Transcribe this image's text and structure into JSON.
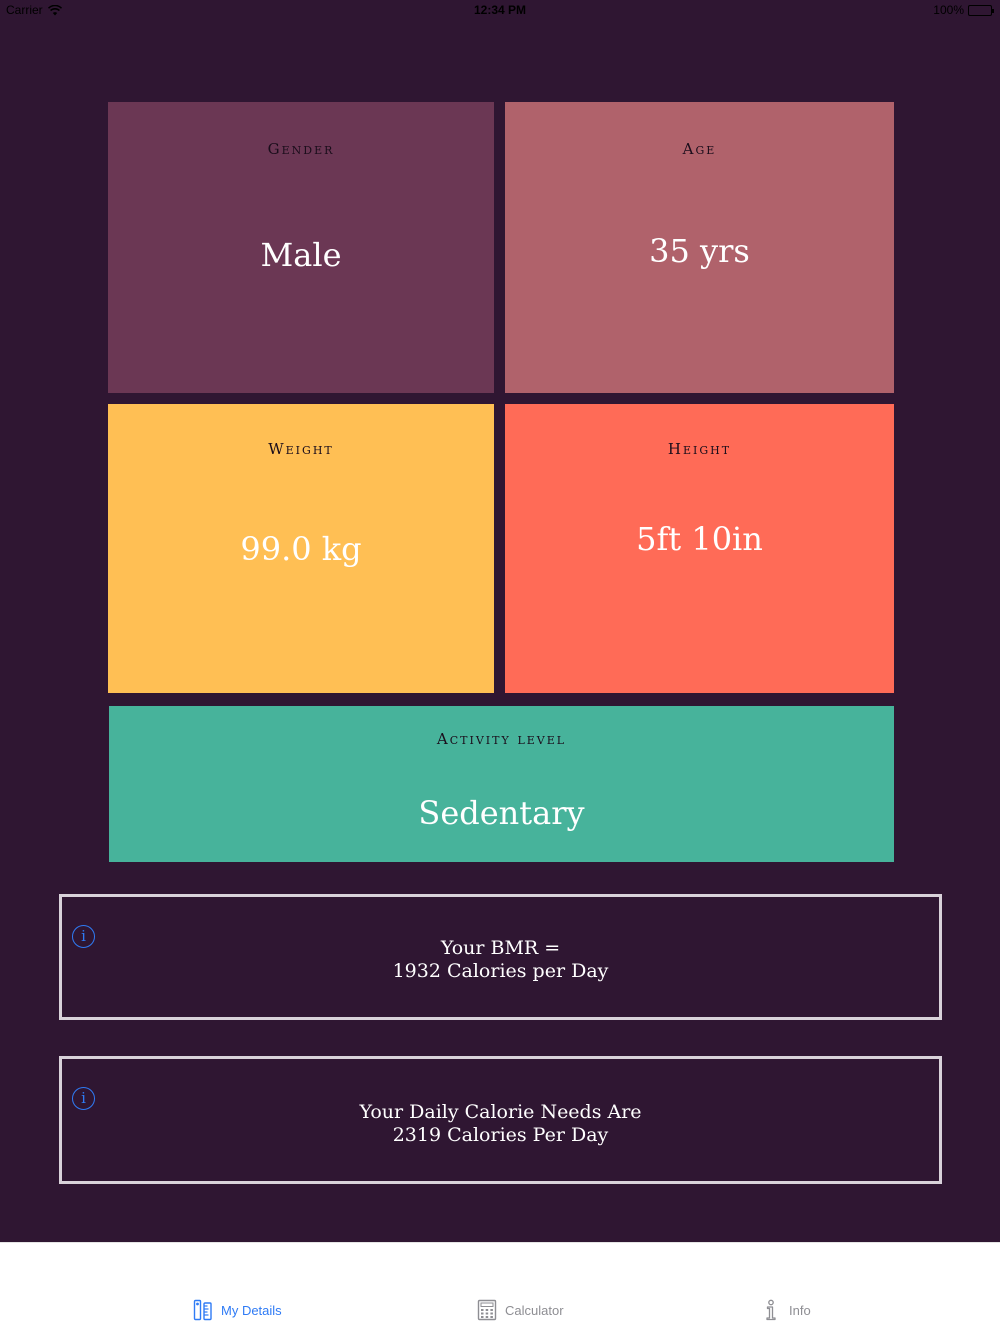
{
  "status_bar": {
    "carrier": "Carrier",
    "time": "12:34 PM",
    "battery": "100%",
    "battery_level": 1.0
  },
  "tiles": {
    "gender": {
      "label": "Gender",
      "value": "Male",
      "color": "#6b3754"
    },
    "age": {
      "label": "Age",
      "value": "35 yrs",
      "color": "#b0626b"
    },
    "weight": {
      "label": "Weight",
      "value": "99.0 kg",
      "color": "#ffbf54"
    },
    "height": {
      "label": "Height",
      "value": "5ft 10in",
      "color": "#ff6b57"
    },
    "activity": {
      "label": "Activity level",
      "value": "Sedentary",
      "color": "#47b39b"
    }
  },
  "results": {
    "bmr": {
      "line1": "Your BMR =",
      "line2": "1932 Calories per Day",
      "icon": "info-icon"
    },
    "calories": {
      "line1": "Your Daily Calorie Needs Are",
      "line2": "2319 Calories Per Day",
      "icon": "info-icon"
    }
  },
  "tab_bar": {
    "active_color": "#2f7bf5",
    "items": [
      {
        "label": "My Details",
        "icon": "ruler-icon",
        "active": true
      },
      {
        "label": "Calculator",
        "icon": "calculator-icon",
        "active": false
      },
      {
        "label": "Info",
        "icon": "info-icon",
        "active": false
      }
    ]
  }
}
